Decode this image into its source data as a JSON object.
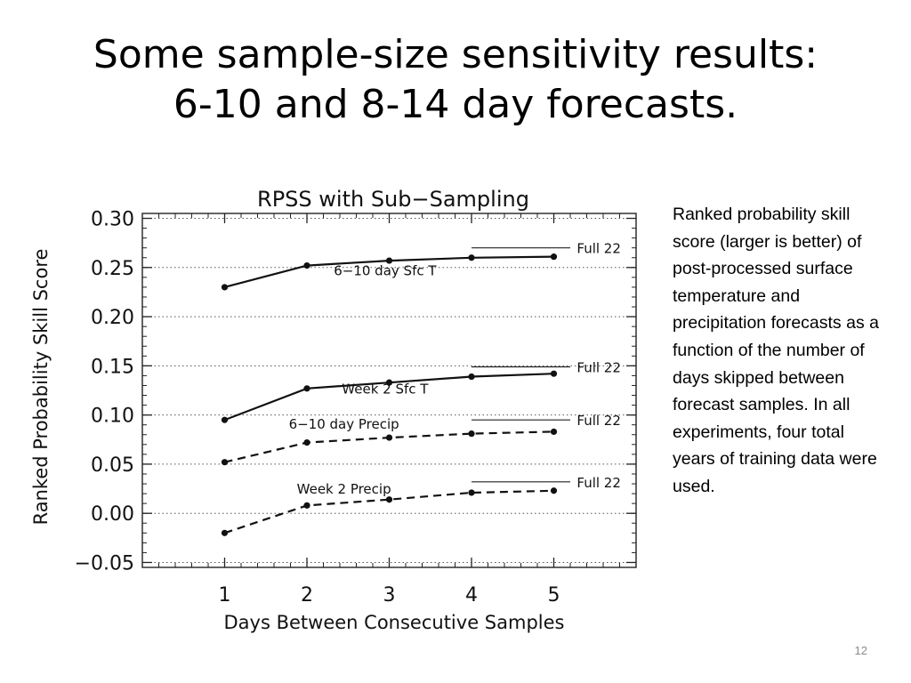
{
  "slide": {
    "title_line1": "Some sample-size sensitivity results:",
    "title_line2": "6-10 and 8-14 day forecasts.",
    "caption": "Ranked probability skill score (larger is better) of post-processed surface temperature and precipitation forecasts as a function of the number of days skipped between forecast samples.  In all experiments, four total years of training data were used.",
    "slide_number": "12"
  },
  "chart_data": {
    "type": "line",
    "title": "RPSS with Sub−Sampling",
    "xlabel": "Days Between Consecutive Samples",
    "ylabel": "Ranked Probability Skill Score",
    "x": [
      1,
      2,
      3,
      4,
      5
    ],
    "x_ticks": [
      "1",
      "2",
      "3",
      "4",
      "5"
    ],
    "xlim": [
      0,
      6
    ],
    "ylim": [
      -0.055,
      0.305
    ],
    "y_ticks": [
      "0.30",
      "0.25",
      "0.20",
      "0.15",
      "0.10",
      "0.05",
      "0.00",
      "−0.05"
    ],
    "y_tick_values": [
      0.3,
      0.25,
      0.2,
      0.15,
      0.1,
      0.05,
      0.0,
      -0.05
    ],
    "grid": "horizontal dotted",
    "series": [
      {
        "name": "6−10 day Sfc T",
        "values": [
          0.23,
          0.252,
          0.257,
          0.26,
          0.261
        ],
        "style": "solid",
        "full22": 0.27,
        "full22_label": "Full 22"
      },
      {
        "name": "Week 2 Sfc T",
        "values": [
          0.095,
          0.127,
          0.133,
          0.139,
          0.142
        ],
        "style": "solid",
        "full22": 0.149,
        "full22_label": "Full 22"
      },
      {
        "name": "6−10 day Precip",
        "values": [
          0.052,
          0.072,
          0.077,
          0.081,
          0.083
        ],
        "style": "dashed",
        "full22": 0.095,
        "full22_label": "Full 22"
      },
      {
        "name": "Week 2 Precip",
        "values": [
          -0.02,
          0.008,
          0.014,
          0.021,
          0.023
        ],
        "style": "dashed",
        "full22": 0.032,
        "full22_label": "Full 22"
      }
    ]
  }
}
